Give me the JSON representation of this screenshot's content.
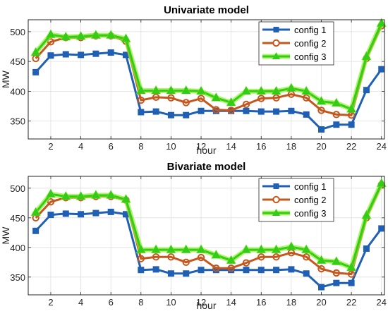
{
  "chart_data": [
    {
      "type": "line",
      "title": "Univariate model",
      "xlabel": "hour",
      "ylabel": "MW",
      "xlim": [
        0.5,
        24.2
      ],
      "ylim": [
        320,
        520
      ],
      "x_ticks": [
        2,
        4,
        6,
        8,
        10,
        12,
        14,
        16,
        18,
        20,
        22,
        24
      ],
      "y_ticks": [
        350,
        400,
        450,
        500
      ],
      "grid": true,
      "legend_position": "top-right",
      "x": [
        1,
        2,
        3,
        4,
        5,
        6,
        7,
        8,
        9,
        10,
        11,
        12,
        13,
        14,
        15,
        16,
        17,
        18,
        19,
        20,
        21,
        22,
        23,
        24
      ],
      "series": [
        {
          "name": "config 1",
          "marker": "square",
          "color": "#1f5fb4",
          "values": [
            432,
            460,
            462,
            461,
            463,
            465,
            461,
            365,
            366,
            360,
            360,
            367,
            367,
            367,
            367,
            366,
            366,
            367,
            361,
            336,
            344,
            344,
            402,
            437
          ]
        },
        {
          "name": "config 2",
          "marker": "circle",
          "color": "#c4571c",
          "values": [
            455,
            483,
            490,
            490,
            493,
            493,
            484,
            385,
            390,
            389,
            381,
            388,
            369,
            368,
            378,
            388,
            389,
            395,
            389,
            368,
            361,
            360,
            455,
            510
          ]
        },
        {
          "name": "config 3",
          "marker": "triangle",
          "color": "#33cc17",
          "glow": "#8ef02f",
          "values": [
            465,
            495,
            491,
            492,
            494,
            494,
            488,
            401,
            401,
            401,
            401,
            400,
            389,
            381,
            400,
            400,
            400,
            405,
            400,
            383,
            380,
            370,
            458,
            514
          ]
        }
      ]
    },
    {
      "type": "line",
      "title": "Bivariate model",
      "xlabel": "hour",
      "ylabel": "MW",
      "xlim": [
        0.5,
        24.2
      ],
      "ylim": [
        320,
        520
      ],
      "x_ticks": [
        2,
        4,
        6,
        8,
        10,
        12,
        14,
        16,
        18,
        20,
        22,
        24
      ],
      "y_ticks": [
        350,
        400,
        450,
        500
      ],
      "grid": true,
      "legend_position": "top-right",
      "x": [
        1,
        2,
        3,
        4,
        5,
        6,
        7,
        8,
        9,
        10,
        11,
        12,
        13,
        14,
        15,
        16,
        17,
        18,
        19,
        20,
        21,
        22,
        23,
        24
      ],
      "series": [
        {
          "name": "config 1",
          "marker": "square",
          "color": "#1f5fb4",
          "values": [
            428,
            455,
            457,
            456,
            458,
            460,
            456,
            362,
            363,
            356,
            356,
            362,
            362,
            362,
            362,
            362,
            362,
            363,
            356,
            333,
            340,
            340,
            398,
            432
          ]
        },
        {
          "name": "config 2",
          "marker": "circle",
          "color": "#c4571c",
          "values": [
            450,
            477,
            484,
            484,
            486,
            486,
            480,
            381,
            384,
            384,
            375,
            383,
            365,
            365,
            374,
            384,
            384,
            391,
            384,
            364,
            357,
            355,
            450,
            506
          ]
        },
        {
          "name": "config 3",
          "marker": "triangle",
          "color": "#33cc17",
          "glow": "#8ef02f",
          "values": [
            459,
            490,
            486,
            486,
            488,
            488,
            481,
            396,
            396,
            396,
            396,
            396,
            387,
            378,
            396,
            396,
            396,
            401,
            396,
            378,
            376,
            366,
            454,
            508
          ]
        }
      ]
    }
  ]
}
